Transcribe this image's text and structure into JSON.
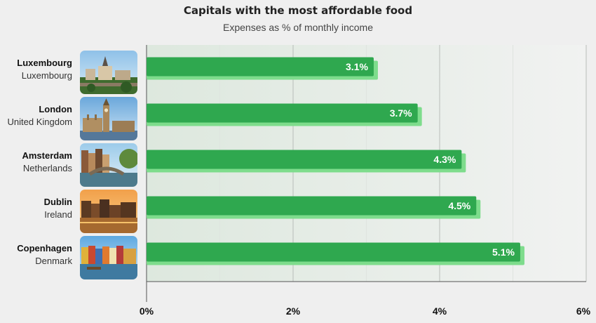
{
  "title": "Capitals with the most affordable food",
  "subtitle": "Expenses as % of monthly income",
  "colors": {
    "bar": "#2fa84f",
    "bar_shadow": "#7edc8c",
    "plot_bg": "#e4ece4",
    "page_bg": "#efefef"
  },
  "chart_data": {
    "type": "bar",
    "orientation": "horizontal",
    "title": "Capitals with the most affordable food",
    "subtitle": "Expenses as % of monthly income",
    "categories": [
      {
        "city": "Luxembourg",
        "country": "Luxembourg",
        "image": "luxembourg-photo"
      },
      {
        "city": "London",
        "country": "United Kingdom",
        "image": "london-photo"
      },
      {
        "city": "Amsterdam",
        "country": "Netherlands",
        "image": "amsterdam-photo"
      },
      {
        "city": "Dublin",
        "country": "Ireland",
        "image": "dublin-photo"
      },
      {
        "city": "Copenhagen",
        "country": "Denmark",
        "image": "copenhagen-photo"
      }
    ],
    "values": [
      3.1,
      3.7,
      4.3,
      4.5,
      5.1
    ],
    "value_labels": [
      "3.1%",
      "3.7%",
      "4.3%",
      "4.5%",
      "5.1%"
    ],
    "xlim": [
      0,
      6
    ],
    "xticks": [
      0,
      2,
      4,
      6
    ],
    "xtick_labels": [
      "0%",
      "2%",
      "4%",
      "6%"
    ],
    "grid": true
  }
}
